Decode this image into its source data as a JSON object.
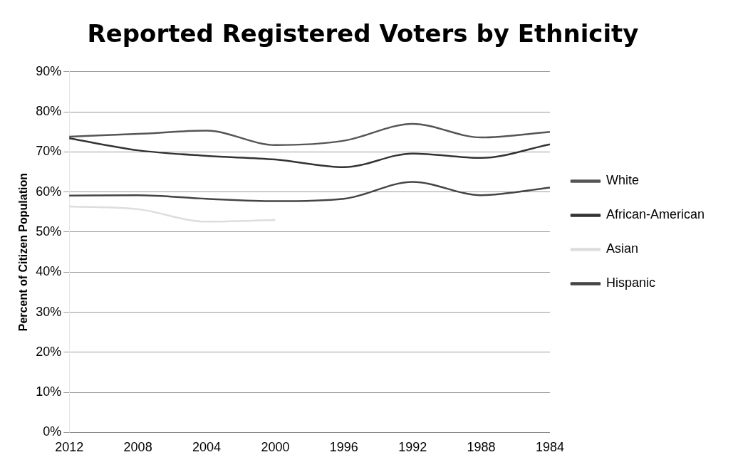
{
  "chart_data": {
    "type": "line",
    "title": "Reported Registered Voters by Ethnicity",
    "ylabel": "Percent of Citizen Population",
    "categories": [
      "2012",
      "2008",
      "2004",
      "2000",
      "1996",
      "1992",
      "1988",
      "1984"
    ],
    "series": [
      {
        "name": "White",
        "color": "#555555",
        "values": [
          73.8,
          74.5,
          75.3,
          71.7,
          72.8,
          77,
          73.6,
          75
        ]
      },
      {
        "name": "African-American",
        "color": "#333333",
        "values": [
          73.4,
          70.4,
          69,
          68.1,
          66.2,
          69.6,
          68.5,
          71.9
        ]
      },
      {
        "name": "Asian",
        "color": "#dddddd",
        "values": [
          56.4,
          55.7,
          52.6,
          53,
          null,
          null,
          null,
          null
        ]
      },
      {
        "name": "Hispanic",
        "color": "#444444",
        "values": [
          59.1,
          59.2,
          58.3,
          57.7,
          58.3,
          62.5,
          59.2,
          61.1
        ]
      }
    ],
    "ylim": [
      0,
      90
    ],
    "yticks": [
      {
        "value": 0,
        "label": "0%"
      },
      {
        "value": 10,
        "label": "10%"
      },
      {
        "value": 20,
        "label": "20%"
      },
      {
        "value": 30,
        "label": "30%"
      },
      {
        "value": 40,
        "label": "40%"
      },
      {
        "value": 50,
        "label": "50%"
      },
      {
        "value": 60,
        "label": "60%"
      },
      {
        "value": 70,
        "label": "70%"
      },
      {
        "value": 80,
        "label": "80%"
      },
      {
        "value": 90,
        "label": "90%"
      }
    ],
    "grid": "y",
    "legend": "right",
    "marker": "none",
    "line_style": "solid"
  }
}
